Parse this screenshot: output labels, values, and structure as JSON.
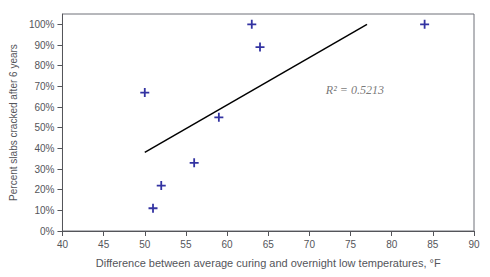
{
  "chart_data": {
    "type": "scatter",
    "xlabel": "Difference between average curing and overnight low temperatures, °F",
    "ylabel": "Percent slabs cracked after 6 years",
    "series": [
      {
        "type": "scatter",
        "color": "#00008B",
        "marker": "plus",
        "x": [
          50,
          51,
          52,
          56,
          59,
          63,
          64,
          84
        ],
        "values": [
          0.67,
          0.11,
          0.22,
          0.33,
          0.55,
          1.0,
          0.89,
          1.0
        ]
      },
      {
        "type": "line",
        "color": "#000000",
        "x": [
          50,
          77
        ],
        "values": [
          0.38,
          1.0
        ]
      }
    ],
    "annotations": [
      {
        "text": "R² = 0.5213",
        "x": 72,
        "y": 0.68
      }
    ],
    "xlim": [
      40,
      90
    ],
    "ylim": [
      0,
      1.05
    ],
    "xticks": [
      40,
      45,
      50,
      55,
      60,
      65,
      70,
      75,
      80,
      85,
      90
    ],
    "yticks": [
      {
        "value": 0.0,
        "label": "0%"
      },
      {
        "value": 0.1,
        "label": "10%"
      },
      {
        "value": 0.2,
        "label": "20%"
      },
      {
        "value": 0.3,
        "label": "30%"
      },
      {
        "value": 0.4,
        "label": "40%"
      },
      {
        "value": 0.5,
        "label": "50%"
      },
      {
        "value": 0.6,
        "label": "60%"
      },
      {
        "value": 0.7,
        "label": "70%"
      },
      {
        "value": 0.8,
        "label": "80%"
      },
      {
        "value": 0.9,
        "label": "90%"
      },
      {
        "value": 1.0,
        "label": "100%"
      }
    ],
    "grid": false
  }
}
